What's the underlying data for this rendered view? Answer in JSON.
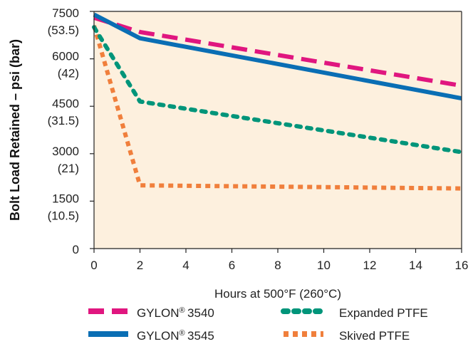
{
  "chart_data": {
    "type": "line",
    "title": "",
    "xlabel": "Hours at 500°F (260°C)",
    "ylabel": "Bolt Load Retained – psi (bar)",
    "xlim": [
      0,
      16
    ],
    "ylim": [
      0,
      7500
    ],
    "grid": false,
    "plot_background": "#fdf0de",
    "legend_position": "bottom",
    "x_ticks": [
      "0",
      "2",
      "4",
      "6",
      "8",
      "10",
      "12",
      "14",
      "16"
    ],
    "y_ticks": [
      {
        "value": 0,
        "psi": "0",
        "bar": ""
      },
      {
        "value": 1500,
        "psi": "1500",
        "bar": "(10.5)"
      },
      {
        "value": 3000,
        "psi": "3000",
        "bar": "(21)"
      },
      {
        "value": 4500,
        "psi": "4500",
        "bar": "(31.5)"
      },
      {
        "value": 6000,
        "psi": "6000",
        "bar": "(42)"
      },
      {
        "value": 7500,
        "psi": "7500",
        "bar": "(53.5)"
      }
    ],
    "series": [
      {
        "name": "GYLON® 3540",
        "label_main": "GYLON",
        "label_mark": "®",
        "label_num": "3540",
        "color": "#e0167f",
        "style": "dashed",
        "x": [
          0,
          2,
          16
        ],
        "y": [
          7300,
          6850,
          5150
        ]
      },
      {
        "name": "GYLON® 3545",
        "label_main": "GYLON",
        "label_mark": "®",
        "label_num": "3545",
        "color": "#0a6eb4",
        "style": "solid",
        "x": [
          0,
          2,
          16
        ],
        "y": [
          7400,
          6650,
          4750
        ]
      },
      {
        "name": "Expanded PTFE",
        "color": "#00957a",
        "style": "dotted",
        "x": [
          0,
          2,
          16
        ],
        "y": [
          7000,
          4650,
          3050
        ]
      },
      {
        "name": "Skived PTFE",
        "color": "#f07f3c",
        "style": "dotted",
        "x": [
          0,
          2,
          16
        ],
        "y": [
          7050,
          2000,
          1900
        ]
      }
    ]
  }
}
